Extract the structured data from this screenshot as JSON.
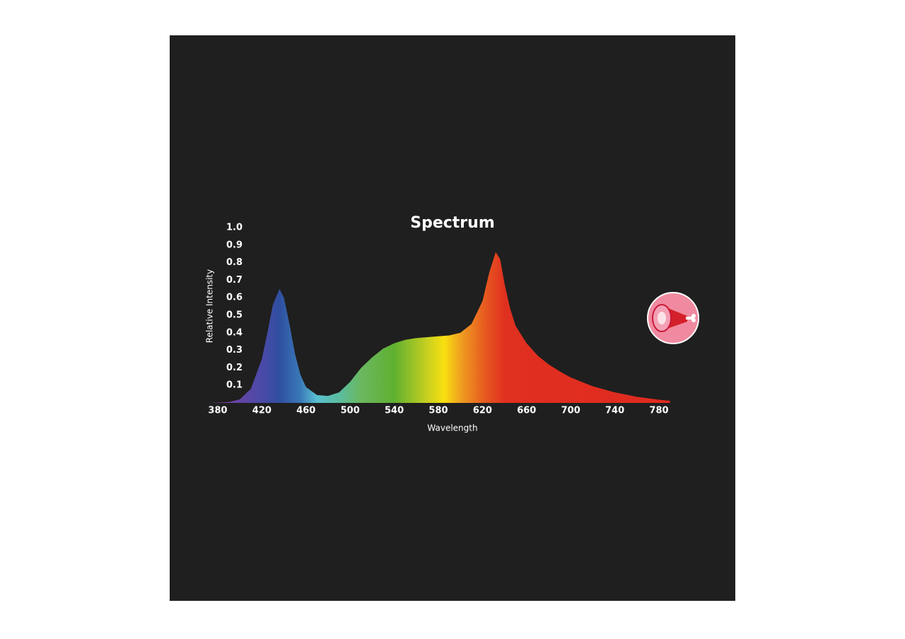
{
  "chart_data": {
    "type": "area",
    "title": "Spectrum",
    "x_label": "Wavelength",
    "y_label": "Relative Intensity",
    "x": [
      372,
      380,
      390,
      400,
      410,
      420,
      425,
      430,
      436,
      440,
      445,
      450,
      455,
      460,
      470,
      480,
      490,
      500,
      510,
      520,
      530,
      540,
      550,
      560,
      570,
      580,
      590,
      600,
      610,
      620,
      626,
      632,
      636,
      640,
      645,
      650,
      660,
      670,
      680,
      690,
      700,
      720,
      740,
      760,
      780,
      790
    ],
    "values": [
      0,
      0.002,
      0.005,
      0.02,
      0.08,
      0.25,
      0.4,
      0.56,
      0.65,
      0.6,
      0.45,
      0.28,
      0.16,
      0.09,
      0.045,
      0.04,
      0.06,
      0.12,
      0.2,
      0.26,
      0.31,
      0.34,
      0.36,
      0.37,
      0.375,
      0.38,
      0.385,
      0.4,
      0.45,
      0.58,
      0.74,
      0.86,
      0.82,
      0.68,
      0.54,
      0.44,
      0.34,
      0.27,
      0.22,
      0.18,
      0.145,
      0.095,
      0.06,
      0.035,
      0.018,
      0.012
    ],
    "xlim": [
      372,
      790
    ],
    "xticks": [
      380,
      420,
      460,
      500,
      540,
      580,
      620,
      660,
      700,
      740,
      780
    ],
    "ylim": [
      0,
      1
    ],
    "yticks": [
      0.1,
      0.2,
      0.3,
      0.4,
      0.5,
      0.6,
      0.7,
      0.8,
      0.9,
      {
        "value": 1,
        "label": "1.0"
      }
    ],
    "grid": false
  }
}
